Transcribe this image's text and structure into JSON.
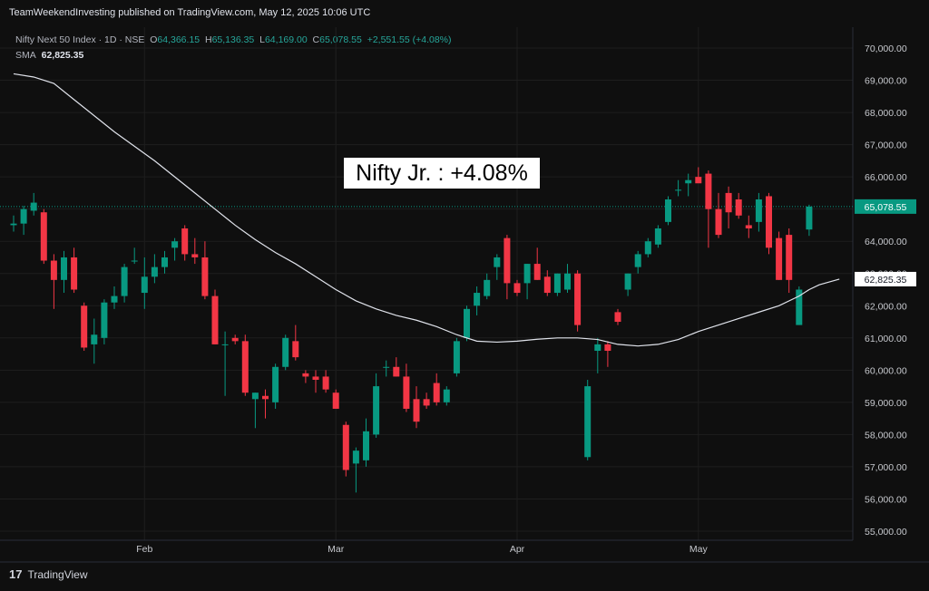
{
  "header": {
    "published": "TeamWeekendInvesting published on TradingView.com, May 12, 2025 10:06 UTC"
  },
  "legend": {
    "symbol": "Nifty Next 50 Index · 1D · NSE",
    "o_label": "O",
    "o_val": "64,366.15",
    "h_label": "H",
    "h_val": "65,136.35",
    "l_label": "L",
    "l_val": "64,169.00",
    "c_label": "C",
    "c_val": "65,078.55",
    "change": "+2,551.55 (+4.08%)",
    "sma_label": "SMA",
    "sma_val": "62,825.35"
  },
  "annotation": "Nifty Jr. : +4.08%",
  "footer": {
    "brand": "TradingView"
  },
  "colors": {
    "up": "#089981",
    "down": "#f23645",
    "sma": "#e0e3eb",
    "last_price": "#089981",
    "background": "#0f0f0f"
  },
  "chart_data": {
    "type": "candlestick",
    "y_ticks": [
      "70,000.00",
      "69,000.00",
      "68,000.00",
      "67,000.00",
      "66,000.00",
      "65,000.00",
      "64,000.00",
      "63,000.00",
      "62,000.00",
      "61,000.00",
      "60,000.00",
      "59,000.00",
      "58,000.00",
      "57,000.00",
      "56,000.00",
      "55,000.00"
    ],
    "y_tick_values": [
      70000,
      69000,
      68000,
      67000,
      66000,
      65000,
      64000,
      63000,
      62000,
      61000,
      60000,
      59000,
      58000,
      57000,
      56000,
      55000
    ],
    "ylim": [
      54600,
      70600
    ],
    "x_labels": [
      {
        "label": "Feb",
        "index": 13
      },
      {
        "label": "Mar",
        "index": 32
      },
      {
        "label": "Apr",
        "index": 50
      },
      {
        "label": "May",
        "index": 68
      }
    ],
    "last_price_label": "65,078.55",
    "last_price": 65078.55,
    "sma_label": "62,825.35",
    "sma_last": 62825.35,
    "candles": [
      {
        "o": 64500,
        "h": 64800,
        "l": 64300,
        "c": 64550
      },
      {
        "o": 64550,
        "h": 65100,
        "l": 64200,
        "c": 65000
      },
      {
        "o": 64950,
        "h": 65500,
        "l": 64800,
        "c": 65200
      },
      {
        "o": 64900,
        "h": 65000,
        "l": 63300,
        "c": 63400
      },
      {
        "o": 63400,
        "h": 63600,
        "l": 61900,
        "c": 62800
      },
      {
        "o": 62800,
        "h": 63700,
        "l": 62400,
        "c": 63500
      },
      {
        "o": 63500,
        "h": 63800,
        "l": 62400,
        "c": 62500
      },
      {
        "o": 62000,
        "h": 62100,
        "l": 60600,
        "c": 60700
      },
      {
        "o": 60800,
        "h": 61600,
        "l": 60200,
        "c": 61100
      },
      {
        "o": 61000,
        "h": 62200,
        "l": 60800,
        "c": 62100
      },
      {
        "o": 62100,
        "h": 62600,
        "l": 61900,
        "c": 62300
      },
      {
        "o": 62300,
        "h": 63300,
        "l": 62100,
        "c": 63200
      },
      {
        "o": 63400,
        "h": 63800,
        "l": 63300,
        "c": 63400
      },
      {
        "o": 62400,
        "h": 63500,
        "l": 61900,
        "c": 62900
      },
      {
        "o": 62900,
        "h": 63600,
        "l": 62700,
        "c": 63200
      },
      {
        "o": 63200,
        "h": 63700,
        "l": 63000,
        "c": 63500
      },
      {
        "o": 63800,
        "h": 64100,
        "l": 63400,
        "c": 64000
      },
      {
        "o": 64400,
        "h": 64500,
        "l": 63400,
        "c": 63600
      },
      {
        "o": 63600,
        "h": 64100,
        "l": 63300,
        "c": 63500
      },
      {
        "o": 63500,
        "h": 64000,
        "l": 62200,
        "c": 62300
      },
      {
        "o": 62300,
        "h": 62500,
        "l": 60800,
        "c": 60800
      },
      {
        "o": 60800,
        "h": 61200,
        "l": 59200,
        "c": 60800
      },
      {
        "o": 61000,
        "h": 61100,
        "l": 60800,
        "c": 60900
      },
      {
        "o": 60900,
        "h": 61100,
        "l": 59200,
        "c": 59300
      },
      {
        "o": 59100,
        "h": 59300,
        "l": 58200,
        "c": 59300
      },
      {
        "o": 59200,
        "h": 59400,
        "l": 58500,
        "c": 59100
      },
      {
        "o": 59000,
        "h": 60200,
        "l": 58800,
        "c": 60100
      },
      {
        "o": 60100,
        "h": 61100,
        "l": 60000,
        "c": 61000
      },
      {
        "o": 60900,
        "h": 61400,
        "l": 60300,
        "c": 60400
      },
      {
        "o": 59900,
        "h": 60000,
        "l": 59600,
        "c": 59800
      },
      {
        "o": 59800,
        "h": 60000,
        "l": 59300,
        "c": 59700
      },
      {
        "o": 59800,
        "h": 60000,
        "l": 59300,
        "c": 59400
      },
      {
        "o": 59300,
        "h": 59400,
        "l": 58800,
        "c": 58800
      },
      {
        "o": 58300,
        "h": 58400,
        "l": 56700,
        "c": 56900
      },
      {
        "o": 57100,
        "h": 57600,
        "l": 56200,
        "c": 57500
      },
      {
        "o": 57200,
        "h": 58500,
        "l": 57000,
        "c": 58100
      },
      {
        "o": 58000,
        "h": 59900,
        "l": 57900,
        "c": 59500
      },
      {
        "o": 60100,
        "h": 60300,
        "l": 59800,
        "c": 60100
      },
      {
        "o": 60100,
        "h": 60400,
        "l": 59800,
        "c": 59800
      },
      {
        "o": 59800,
        "h": 60200,
        "l": 58700,
        "c": 58800
      },
      {
        "o": 59100,
        "h": 59500,
        "l": 58200,
        "c": 58400
      },
      {
        "o": 59100,
        "h": 59300,
        "l": 58800,
        "c": 58900
      },
      {
        "o": 59600,
        "h": 59900,
        "l": 58900,
        "c": 59000
      },
      {
        "o": 59000,
        "h": 59500,
        "l": 58900,
        "c": 59400
      },
      {
        "o": 59900,
        "h": 61000,
        "l": 59800,
        "c": 60900
      },
      {
        "o": 61000,
        "h": 62000,
        "l": 60900,
        "c": 61900
      },
      {
        "o": 62000,
        "h": 62600,
        "l": 61700,
        "c": 62400
      },
      {
        "o": 62300,
        "h": 63000,
        "l": 62200,
        "c": 62800
      },
      {
        "o": 63200,
        "h": 63600,
        "l": 62800,
        "c": 63500
      },
      {
        "o": 64100,
        "h": 64200,
        "l": 62200,
        "c": 62700
      },
      {
        "o": 62700,
        "h": 62800,
        "l": 62300,
        "c": 62400
      },
      {
        "o": 62700,
        "h": 63300,
        "l": 62200,
        "c": 63300
      },
      {
        "o": 63300,
        "h": 63800,
        "l": 62800,
        "c": 62800
      },
      {
        "o": 62900,
        "h": 63100,
        "l": 62300,
        "c": 62400
      },
      {
        "o": 62400,
        "h": 63000,
        "l": 62300,
        "c": 63000
      },
      {
        "o": 62500,
        "h": 63300,
        "l": 62400,
        "c": 63000
      },
      {
        "o": 63000,
        "h": 63100,
        "l": 61200,
        "c": 61400
      },
      {
        "o": 57300,
        "h": 59700,
        "l": 57200,
        "c": 59500
      },
      {
        "o": 60600,
        "h": 61000,
        "l": 59900,
        "c": 60800
      },
      {
        "o": 60800,
        "h": 60900,
        "l": 60100,
        "c": 60600
      },
      {
        "o": 61800,
        "h": 61900,
        "l": 61400,
        "c": 61500
      },
      {
        "o": 62500,
        "h": 63000,
        "l": 62300,
        "c": 63000
      },
      {
        "o": 63200,
        "h": 63700,
        "l": 63000,
        "c": 63600
      },
      {
        "o": 63600,
        "h": 64100,
        "l": 63500,
        "c": 64000
      },
      {
        "o": 63900,
        "h": 64500,
        "l": 63800,
        "c": 64400
      },
      {
        "o": 64600,
        "h": 65400,
        "l": 64500,
        "c": 65300
      },
      {
        "o": 65600,
        "h": 65900,
        "l": 65400,
        "c": 65600
      },
      {
        "o": 65800,
        "h": 66100,
        "l": 65400,
        "c": 65900
      },
      {
        "o": 66000,
        "h": 66300,
        "l": 65900,
        "c": 65800
      },
      {
        "o": 66100,
        "h": 66200,
        "l": 63800,
        "c": 65000
      },
      {
        "o": 65000,
        "h": 65500,
        "l": 64100,
        "c": 64200
      },
      {
        "o": 65500,
        "h": 65700,
        "l": 64400,
        "c": 64900
      },
      {
        "o": 65300,
        "h": 65500,
        "l": 64700,
        "c": 64800
      },
      {
        "o": 64500,
        "h": 64800,
        "l": 64100,
        "c": 64400
      },
      {
        "o": 64600,
        "h": 65500,
        "l": 64300,
        "c": 65300
      },
      {
        "o": 65400,
        "h": 65500,
        "l": 63600,
        "c": 63800
      },
      {
        "o": 64100,
        "h": 64300,
        "l": 62800,
        "c": 62800
      },
      {
        "o": 64200,
        "h": 64400,
        "l": 62400,
        "c": 62800
      },
      {
        "o": 61400,
        "h": 62600,
        "l": 61400,
        "c": 62500
      },
      {
        "o": 64366.15,
        "h": 65136.35,
        "l": 64169,
        "c": 65078.55
      }
    ],
    "sma": [
      [
        0,
        69200
      ],
      [
        2,
        69100
      ],
      [
        4,
        68900
      ],
      [
        6,
        68400
      ],
      [
        8,
        67900
      ],
      [
        10,
        67400
      ],
      [
        12,
        66950
      ],
      [
        14,
        66500
      ],
      [
        16,
        66000
      ],
      [
        18,
        65500
      ],
      [
        20,
        65000
      ],
      [
        22,
        64500
      ],
      [
        24,
        64050
      ],
      [
        26,
        63650
      ],
      [
        28,
        63300
      ],
      [
        30,
        62900
      ],
      [
        32,
        62500
      ],
      [
        34,
        62150
      ],
      [
        36,
        61900
      ],
      [
        38,
        61700
      ],
      [
        40,
        61550
      ],
      [
        42,
        61350
      ],
      [
        44,
        61100
      ],
      [
        46,
        60900
      ],
      [
        48,
        60870
      ],
      [
        50,
        60900
      ],
      [
        52,
        60960
      ],
      [
        54,
        61000
      ],
      [
        56,
        61000
      ],
      [
        58,
        60950
      ],
      [
        60,
        60800
      ],
      [
        62,
        60750
      ],
      [
        64,
        60800
      ],
      [
        66,
        60950
      ],
      [
        68,
        61200
      ],
      [
        70,
        61400
      ],
      [
        72,
        61600
      ],
      [
        74,
        61800
      ],
      [
        76,
        62000
      ],
      [
        78,
        62300
      ],
      [
        79,
        62500
      ],
      [
        80,
        62650
      ],
      [
        82,
        62825.35
      ]
    ]
  }
}
